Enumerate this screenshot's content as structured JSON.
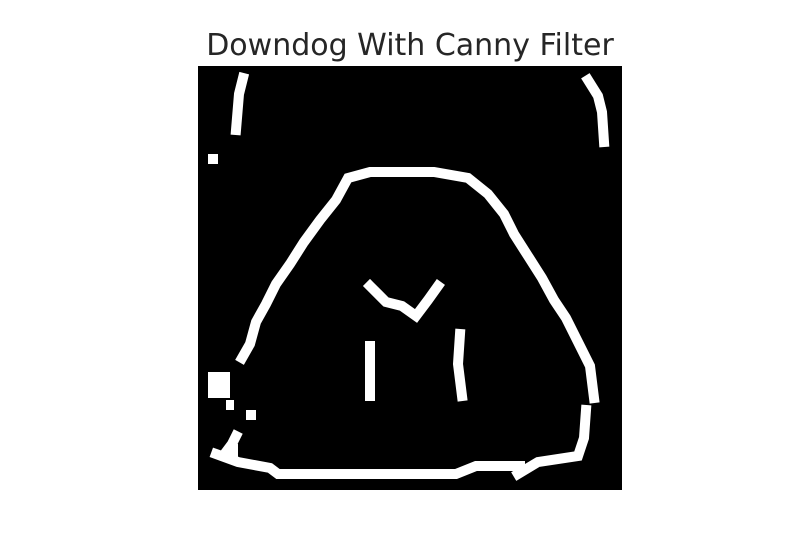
{
  "figure": {
    "title": "Downdog With Canny Filter"
  },
  "image": {
    "filter": "canny",
    "background_color": "#000000",
    "edge_color": "#ffffff",
    "subject": "downdog pose"
  }
}
